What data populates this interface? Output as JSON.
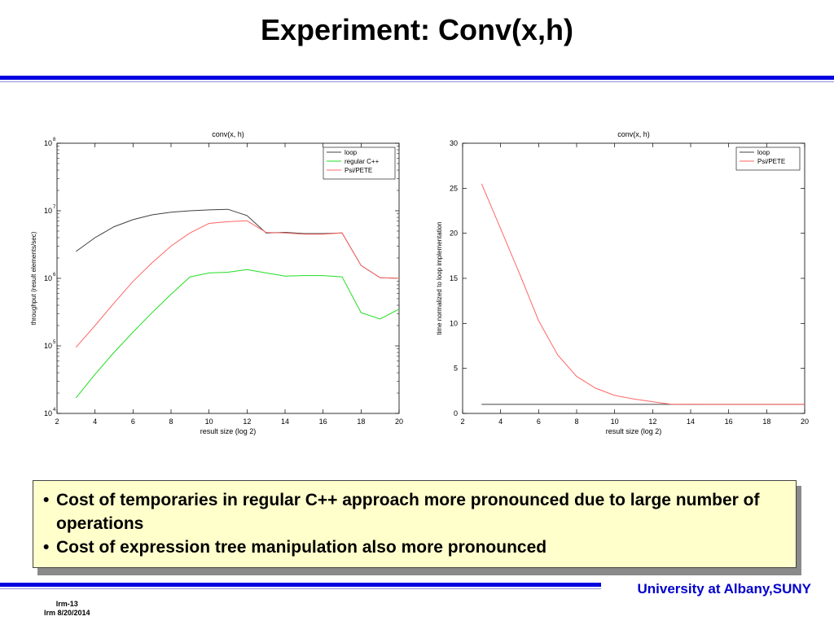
{
  "slide": {
    "title": "Experiment: Conv(x,h)",
    "bullets": [
      "Cost of temporaries in regular C++ approach more pronounced due to large number of operations",
      "Cost of expression tree manipulation also more pronounced"
    ],
    "bullet_symbol": "•",
    "footer_org": "University at Albany,SUNY",
    "footer_slide_id": "lrm-13",
    "footer_date": "lrm 8/20/2014",
    "colors": {
      "rule_blue": "#0000e0",
      "note_bg": "#ffffcc",
      "footer_text": "#0000cc"
    }
  },
  "chart_data": [
    {
      "type": "line",
      "title": "conv(x, h)",
      "xlabel": "result size (log 2)",
      "ylabel": "throughput (result elements/sec)",
      "xlim": [
        2,
        20
      ],
      "ylim": [
        10000,
        100000000
      ],
      "yscale": "log",
      "xticks": [
        2,
        4,
        6,
        8,
        10,
        12,
        14,
        16,
        18,
        20
      ],
      "yticks": [
        {
          "value": 10000,
          "base": "10",
          "exp": "4"
        },
        {
          "value": 100000,
          "base": "10",
          "exp": "5"
        },
        {
          "value": 1000000,
          "base": "10",
          "exp": "6"
        },
        {
          "value": 10000000,
          "base": "10",
          "exp": "7"
        },
        {
          "value": 100000000,
          "base": "10",
          "exp": "8"
        }
      ],
      "grid": false,
      "legend_position": "top-right",
      "x": [
        3,
        4,
        5,
        6,
        7,
        8,
        9,
        10,
        11,
        12,
        13,
        14,
        15,
        16,
        17,
        18,
        19,
        20
      ],
      "series": [
        {
          "name": "loop",
          "color": "#404040",
          "values": [
            2500000,
            4000000,
            5800000,
            7400000,
            8700000,
            9500000,
            10000000,
            10300000,
            10500000,
            8500000,
            4700000,
            4800000,
            4600000,
            4600000,
            4700000,
            1550000,
            1020000,
            1000000
          ]
        },
        {
          "name": "regular C++",
          "color": "#22dd22",
          "values": [
            17000,
            38000,
            80000,
            160000,
            310000,
            580000,
            1050000,
            1200000,
            1230000,
            1350000,
            1200000,
            1080000,
            1100000,
            1100000,
            1050000,
            310000,
            250000,
            350000
          ]
        },
        {
          "name": "Psi/PETE",
          "color": "#ff6666",
          "values": [
            95000,
            200000,
            430000,
            900000,
            1700000,
            3000000,
            4700000,
            6500000,
            6900000,
            7100000,
            4800000,
            4700000,
            4500000,
            4500000,
            4700000,
            1550000,
            1020000,
            1000000
          ]
        }
      ]
    },
    {
      "type": "line",
      "title": "conv(x, h)",
      "xlabel": "result size (log 2)",
      "ylabel": "time normalized to loop implementation",
      "xlim": [
        2,
        20
      ],
      "ylim": [
        0,
        30
      ],
      "xticks": [
        2,
        4,
        6,
        8,
        10,
        12,
        14,
        16,
        18,
        20
      ],
      "yticks": [
        0,
        5,
        10,
        15,
        20,
        25,
        30
      ],
      "grid": false,
      "legend_position": "top-right",
      "x": [
        3,
        4,
        5,
        6,
        7,
        8,
        9,
        10,
        11,
        12,
        13,
        14,
        15,
        16,
        17,
        18,
        19,
        20
      ],
      "series": [
        {
          "name": "loop",
          "color": "#404040",
          "values": [
            1,
            1,
            1,
            1,
            1,
            1,
            1,
            1,
            1,
            1,
            1,
            1,
            1,
            1,
            1,
            1,
            1,
            1
          ]
        },
        {
          "name": "Psi/PETE",
          "color": "#ff6666",
          "values": [
            25.5,
            20.5,
            15.5,
            10.3,
            6.5,
            4.1,
            2.8,
            2.0,
            1.6,
            1.3,
            1.0,
            1.02,
            1.0,
            1.0,
            1.0,
            1.0,
            1.0,
            1.0
          ]
        }
      ]
    }
  ]
}
